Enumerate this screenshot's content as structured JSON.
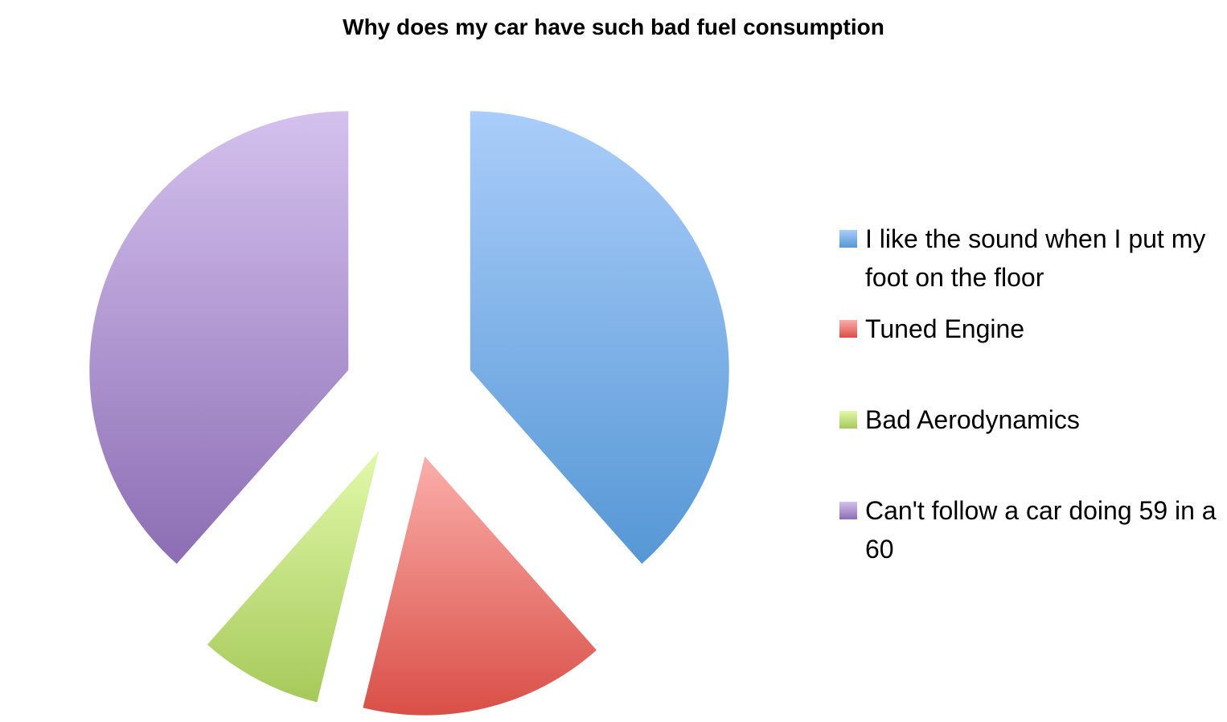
{
  "chart_data": {
    "type": "pie",
    "title": "Why does my car have such bad fuel consumption",
    "exploded": true,
    "start_angle": "12 o'clock, clockwise",
    "legend_position": "right",
    "slices": [
      {
        "label": "I like the sound when I put my foot on the floor",
        "value": 5,
        "color_top": "#aacdfa",
        "color_bottom": "#5597d5"
      },
      {
        "label": "Tuned Engine",
        "value": 2,
        "color_top": "#fbaeaa",
        "color_bottom": "#d94f47"
      },
      {
        "label": "Bad Aerodynamics",
        "value": 1,
        "color_top": "#e2f9aa",
        "color_bottom": "#a6c95a"
      },
      {
        "label": "Can't follow a car doing 59 in a 60",
        "value": 5,
        "color_top": "#d4c1ee",
        "color_bottom": "#8c6db4"
      }
    ]
  }
}
